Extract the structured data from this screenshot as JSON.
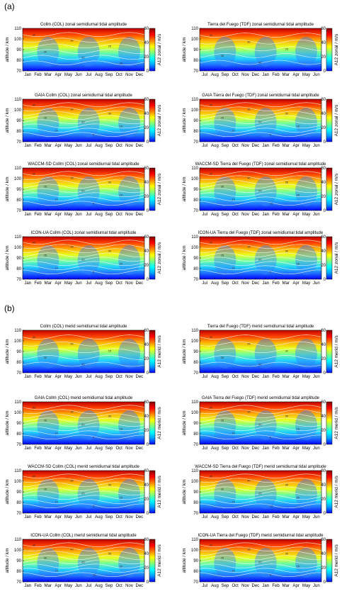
{
  "sections": [
    {
      "label": "(a)"
    },
    {
      "label": "(b)"
    }
  ],
  "colormap": [
    "#0000ff",
    "#00a0ff",
    "#00ffff",
    "#7fff7f",
    "#ffff00",
    "#ff8000",
    "#ff0000",
    "#800000"
  ],
  "chart_data": [
    {
      "type": "heatmap",
      "title": "Collm (COL) zonal semidiurnal tidal amplitude",
      "ylabel": "altitude / km",
      "colorbar_label": "A12 zonal / m/s",
      "x": [
        "Jan",
        "Feb",
        "Mar",
        "Apr",
        "May",
        "Jun",
        "Jul",
        "Aug",
        "Sep",
        "Oct",
        "Nov",
        "Dec"
      ],
      "yticks": [
        "70",
        "80",
        "90",
        "100",
        "110"
      ],
      "cticks": [
        "0",
        "20",
        "40",
        "60"
      ],
      "ylim": [
        70,
        110
      ],
      "clim": [
        0,
        60
      ],
      "contour_labels": [
        "30",
        "25",
        "25",
        "30",
        "35",
        "35"
      ]
    },
    {
      "type": "heatmap",
      "title": "Tierra del Fuego (TDF) zonal semidiurnal tidal amplitude",
      "ylabel": "altitude / km",
      "colorbar_label": "A12 zonal / m/s",
      "x": [
        "Jul",
        "Aug",
        "Sep",
        "Oct",
        "Nov",
        "Dec",
        "Jan",
        "Feb",
        "Mar",
        "Apr",
        "May",
        "Jun"
      ],
      "yticks": [
        "70",
        "80",
        "90",
        "100",
        "110"
      ],
      "cticks": [
        "0",
        "20",
        "40",
        "60"
      ],
      "ylim": [
        70,
        110
      ],
      "clim": [
        0,
        60
      ],
      "contour_labels": [
        "30",
        "30",
        "25",
        "35",
        "30"
      ]
    },
    {
      "type": "heatmap",
      "title": "GAIA Collm (COL) zonal semidiurnal tidal amplitude",
      "ylabel": "altitude / km",
      "colorbar_label": "A12 zonal / m/s",
      "x": [
        "Jan",
        "Feb",
        "Mar",
        "Apr",
        "May",
        "Jun",
        "Jul",
        "Aug",
        "Sep",
        "Oct",
        "Nov",
        "Dec"
      ],
      "yticks": [
        "70",
        "80",
        "90",
        "100",
        "110"
      ],
      "cticks": [
        "0",
        "20",
        "40",
        "60"
      ],
      "ylim": [
        70,
        110
      ],
      "clim": [
        0,
        60
      ],
      "contour_labels": [
        "40",
        "35",
        "30",
        "25",
        "20",
        "15",
        "10",
        "5"
      ]
    },
    {
      "type": "heatmap",
      "title": "GAIA Tierra del Fuego (TDF) zonal semidiurnal tidal amplitude",
      "ylabel": "altitude / km",
      "colorbar_label": "A12 zonal / m/s",
      "x": [
        "Jul",
        "Aug",
        "Sep",
        "Oct",
        "Nov",
        "Dec",
        "Jan",
        "Feb",
        "Mar",
        "Apr",
        "May",
        "Jun"
      ],
      "yticks": [
        "70",
        "80",
        "90",
        "100",
        "110"
      ],
      "cticks": [
        "0",
        "20",
        "40",
        "60"
      ],
      "ylim": [
        70,
        110
      ],
      "clim": [
        0,
        60
      ],
      "contour_labels": [
        "40",
        "35",
        "30",
        "25",
        "20",
        "15",
        "10",
        "5"
      ]
    },
    {
      "type": "heatmap",
      "title": "WACCM-SD Collm (COL) zonal semidiurnal tidal amplitude",
      "ylabel": "altitude / km",
      "colorbar_label": "A12 zonal / m/s",
      "x": [
        "Jan",
        "Feb",
        "Mar",
        "Apr",
        "May",
        "Jun",
        "Jul",
        "Aug",
        "Sep",
        "Oct",
        "Nov",
        "Dec"
      ],
      "yticks": [
        "70",
        "80",
        "90",
        "100",
        "110"
      ],
      "cticks": [
        "0",
        "20",
        "40",
        "60"
      ],
      "ylim": [
        70,
        110
      ],
      "clim": [
        0,
        60
      ],
      "contour_labels": [
        "40",
        "35",
        "30",
        "25",
        "20",
        "15",
        "10",
        "5"
      ]
    },
    {
      "type": "heatmap",
      "title": "WACCM-SD Tierra del Fuego (TDF) zonal semidiurnal tidal amplitude",
      "ylabel": "altitude / km",
      "colorbar_label": "A12 zonal / m/s",
      "x": [
        "Jul",
        "Aug",
        "Sep",
        "Oct",
        "Nov",
        "Dec",
        "Jan",
        "Feb",
        "Mar",
        "Apr",
        "May",
        "Jun"
      ],
      "yticks": [
        "70",
        "80",
        "90",
        "100",
        "110"
      ],
      "cticks": [
        "0",
        "20",
        "40",
        "60"
      ],
      "ylim": [
        70,
        110
      ],
      "clim": [
        0,
        60
      ],
      "contour_labels": [
        "45",
        "40",
        "35",
        "30",
        "25",
        "20",
        "15",
        "10"
      ]
    },
    {
      "type": "heatmap",
      "title": "ICON-UA Collm (COL) zonal semidiurnal tidal amplitude",
      "ylabel": "altitude / km",
      "colorbar_label": "A12 zonal / m/s",
      "x": [
        "Jan",
        "Feb",
        "Mar",
        "Apr",
        "May",
        "Jun",
        "Jul",
        "Aug",
        "Sep",
        "Oct",
        "Nov",
        "Dec"
      ],
      "yticks": [
        "70",
        "80",
        "90",
        "100",
        "110"
      ],
      "cticks": [
        "0",
        "20",
        "40",
        "60"
      ],
      "ylim": [
        70,
        110
      ],
      "clim": [
        0,
        60
      ],
      "contour_labels": [
        "40",
        "35",
        "30",
        "25",
        "20",
        "15",
        "10",
        "5"
      ]
    },
    {
      "type": "heatmap",
      "title": "ICON-UA Tierra del Fuego (TDF) zonal semidiurnal tidal amplitude",
      "ylabel": "altitude / km",
      "colorbar_label": "A12 zonal / m/s",
      "x": [
        "Jul",
        "Aug",
        "Sep",
        "Oct",
        "Nov",
        "Dec",
        "Jan",
        "Feb",
        "Mar",
        "Apr",
        "May",
        "Jun"
      ],
      "yticks": [
        "70",
        "80",
        "90",
        "100",
        "110"
      ],
      "cticks": [
        "0",
        "20",
        "40",
        "60"
      ],
      "ylim": [
        70,
        110
      ],
      "clim": [
        0,
        60
      ],
      "contour_labels": [
        "40",
        "35",
        "30",
        "25",
        "20",
        "15",
        "10",
        "5"
      ]
    },
    {
      "type": "heatmap",
      "title": "Collm (COL) merid semidiurnal tidal amplitude",
      "ylabel": "altitude / km",
      "colorbar_label": "A12 merid / m/s",
      "x": [
        "Jan",
        "Feb",
        "Mar",
        "Apr",
        "May",
        "Jun",
        "Jul",
        "Aug",
        "Sep",
        "Oct",
        "Nov",
        "Dec"
      ],
      "yticks": [
        "70",
        "80",
        "90",
        "100",
        "110"
      ],
      "cticks": [
        "0",
        "20",
        "40",
        "60"
      ],
      "ylim": [
        70,
        110
      ],
      "clim": [
        0,
        60
      ],
      "contour_labels": [
        "30",
        "25",
        "25",
        "30",
        "35"
      ]
    },
    {
      "type": "heatmap",
      "title": "Tierra del Fuego (TDF) merid semidiurnal tidal amplitude",
      "ylabel": "altitude / km",
      "colorbar_label": "A12 merid / m/s",
      "x": [
        "Jul",
        "Aug",
        "Sep",
        "Oct",
        "Nov",
        "Dec",
        "Jan",
        "Feb",
        "Mar",
        "Apr",
        "May",
        "Jun"
      ],
      "yticks": [
        "70",
        "80",
        "90",
        "100",
        "110"
      ],
      "cticks": [
        "0",
        "20",
        "40",
        "60"
      ],
      "ylim": [
        70,
        110
      ],
      "clim": [
        0,
        60
      ],
      "contour_labels": [
        "30",
        "25",
        "30",
        "35",
        "30"
      ]
    },
    {
      "type": "heatmap",
      "title": "GAIA Collm (COL) merid semidiurnal tidal amplitude",
      "ylabel": "altitude / km",
      "colorbar_label": "A12 merid / m/s",
      "x": [
        "Jan",
        "Feb",
        "Mar",
        "Apr",
        "May",
        "Jun",
        "Jul",
        "Aug",
        "Sep",
        "Oct",
        "Nov",
        "Dec"
      ],
      "yticks": [
        "70",
        "80",
        "90",
        "100",
        "110"
      ],
      "cticks": [
        "0",
        "20",
        "40",
        "60"
      ],
      "ylim": [
        70,
        110
      ],
      "clim": [
        0,
        60
      ],
      "contour_labels": [
        "40",
        "35",
        "30",
        "25",
        "20",
        "15",
        "10",
        "5"
      ]
    },
    {
      "type": "heatmap",
      "title": "GAIA Tierra del Fuego (TDF) merid semidiurnal tidal amplitude",
      "ylabel": "altitude / km",
      "colorbar_label": "A12 merid / m/s",
      "x": [
        "Jul",
        "Aug",
        "Sep",
        "Oct",
        "Nov",
        "Dec",
        "Jan",
        "Feb",
        "Mar",
        "Apr",
        "May",
        "Jun"
      ],
      "yticks": [
        "70",
        "80",
        "90",
        "100",
        "110"
      ],
      "cticks": [
        "0",
        "20",
        "40",
        "60"
      ],
      "ylim": [
        70,
        110
      ],
      "clim": [
        0,
        60
      ],
      "contour_labels": [
        "40",
        "35",
        "30",
        "25",
        "20",
        "15",
        "10",
        "5"
      ]
    },
    {
      "type": "heatmap",
      "title": "WACCM-SD Collm (COL)  merid semidiurnal tidal amplitude",
      "ylabel": "altitude / km",
      "colorbar_label": "A12 merid / m/s",
      "x": [
        "Jan",
        "Feb",
        "Mar",
        "Apr",
        "May",
        "Jun",
        "Jul",
        "Aug",
        "Sep",
        "Oct",
        "Nov",
        "Dec"
      ],
      "yticks": [
        "70",
        "80",
        "90",
        "100",
        "110"
      ],
      "cticks": [
        "0",
        "20",
        "40",
        "60"
      ],
      "ylim": [
        70,
        110
      ],
      "clim": [
        0,
        60
      ],
      "contour_labels": [
        "40",
        "35",
        "30",
        "25",
        "20",
        "15",
        "10",
        "5"
      ]
    },
    {
      "type": "heatmap",
      "title": "WACCM-SD Tierra del Fuego (TDF) merid semidiurnal tidal amplitude",
      "ylabel": "altitude / km",
      "colorbar_label": "A12 merid / m/s",
      "x": [
        "Jul",
        "Aug",
        "Sep",
        "Oct",
        "Nov",
        "Dec",
        "Jan",
        "Feb",
        "Mar",
        "Apr",
        "May",
        "Jun"
      ],
      "yticks": [
        "70",
        "80",
        "90",
        "100",
        "110"
      ],
      "cticks": [
        "0",
        "20",
        "40",
        "60"
      ],
      "ylim": [
        70,
        110
      ],
      "clim": [
        0,
        60
      ],
      "contour_labels": [
        "45",
        "40",
        "35",
        "30",
        "25",
        "20",
        "15",
        "10"
      ]
    },
    {
      "type": "heatmap",
      "title": "ICON-UA Collm (COL) merid semidiurnal tidal amplitude",
      "ylabel": "altitude / km",
      "colorbar_label": "A12 merid / m/s",
      "x": [
        "Jan",
        "Feb",
        "Mar",
        "Apr",
        "May",
        "Jun",
        "Jul",
        "Aug",
        "Sep",
        "Oct",
        "Nov",
        "Dec"
      ],
      "yticks": [
        "70",
        "80",
        "90",
        "100",
        "110"
      ],
      "cticks": [
        "0",
        "20",
        "40",
        "60"
      ],
      "ylim": [
        70,
        110
      ],
      "clim": [
        0,
        60
      ],
      "contour_labels": [
        "45",
        "40",
        "35",
        "30",
        "25",
        "20",
        "15",
        "10"
      ]
    },
    {
      "type": "heatmap",
      "title": "ICON-UA Tierra del Fuego (TDF) merid semidiurnal tidal amplitude",
      "ylabel": "altitude / km",
      "colorbar_label": "A12 merid / m/s",
      "x": [
        "Jul",
        "Aug",
        "Sep",
        "Oct",
        "Nov",
        "Dec",
        "Jan",
        "Feb",
        "Mar",
        "Apr",
        "May",
        "Jun"
      ],
      "yticks": [
        "70",
        "80",
        "90",
        "100",
        "110"
      ],
      "cticks": [
        "0",
        "20",
        "40",
        "60"
      ],
      "ylim": [
        70,
        110
      ],
      "clim": [
        0,
        60
      ],
      "contour_labels": [
        "40",
        "35",
        "30",
        "25",
        "20",
        "15",
        "10",
        "5"
      ]
    }
  ]
}
